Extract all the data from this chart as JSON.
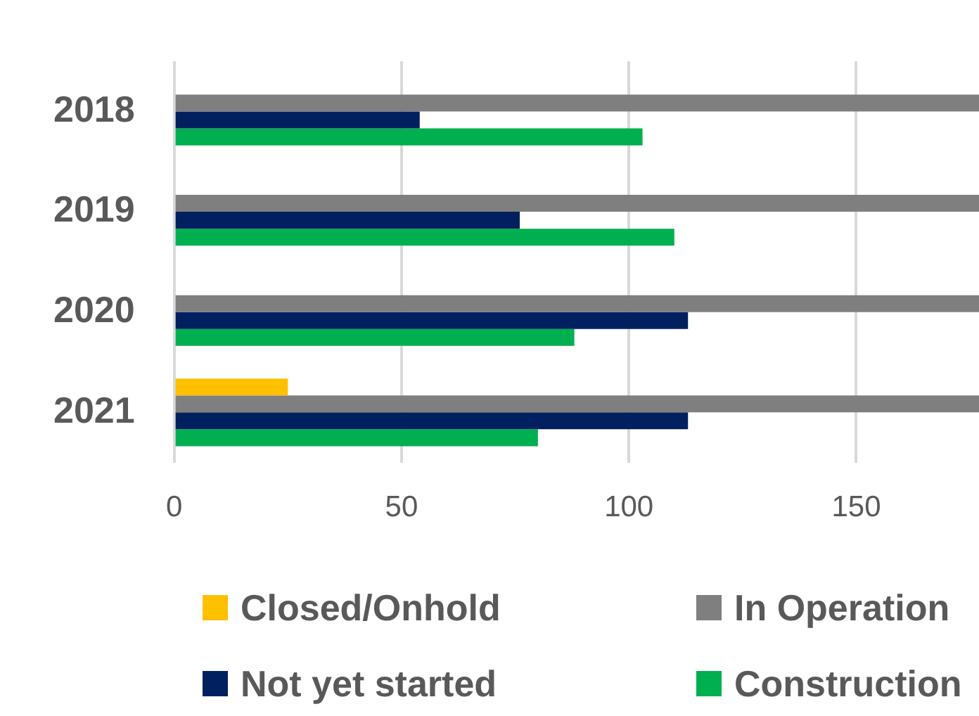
{
  "chart_data": {
    "type": "bar",
    "orientation": "horizontal",
    "categories": [
      "2018",
      "2019",
      "2020",
      "2021"
    ],
    "series": [
      {
        "name": "Closed/Onhold",
        "color": "#ffc000",
        "values": [
          null,
          null,
          null,
          25
        ]
      },
      {
        "name": "In Operation",
        "color": "#7f7f7f",
        "values": [
          177,
          177,
          177,
          177
        ]
      },
      {
        "name": "Not yet started",
        "color": "#002060",
        "values": [
          54,
          76,
          113,
          113
        ]
      },
      {
        "name": "Construction",
        "color": "#00b050",
        "values": [
          103,
          110,
          88,
          80
        ]
      }
    ],
    "xlim": [
      0,
      177
    ],
    "xticks": [
      0,
      50,
      100,
      150
    ],
    "grid": "x",
    "legend": "bottom"
  }
}
